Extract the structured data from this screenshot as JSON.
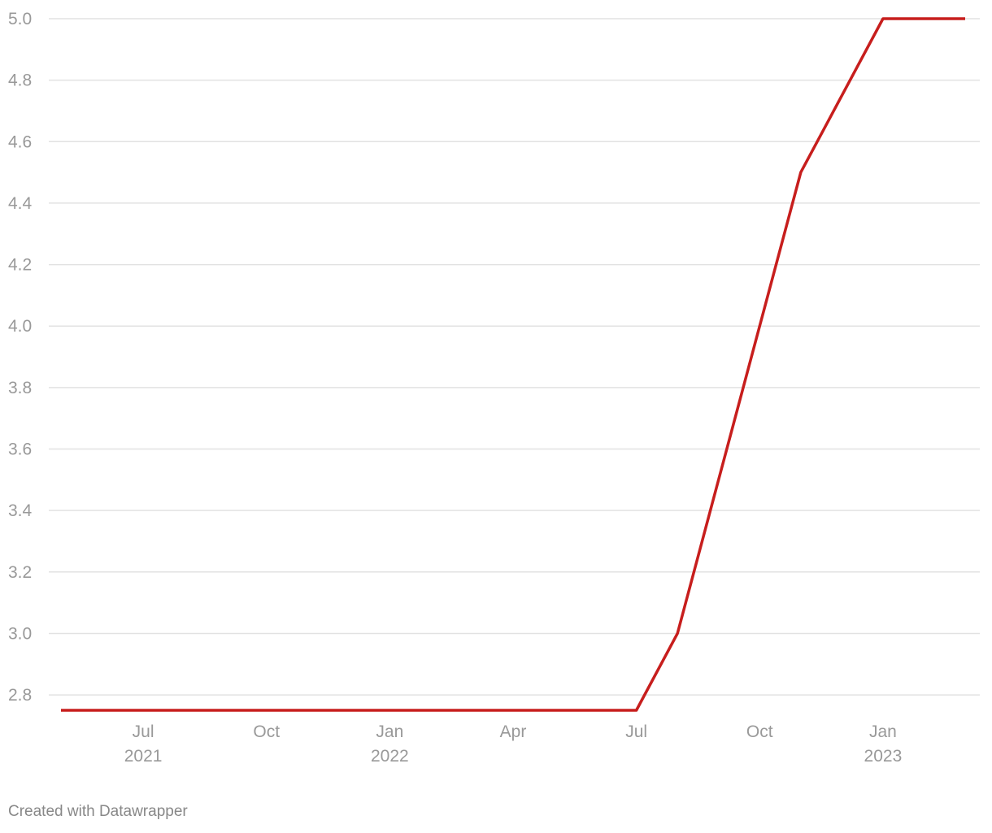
{
  "chart_data": {
    "type": "line",
    "x": [
      "2021-05",
      "2021-06",
      "2021-07",
      "2021-08",
      "2021-09",
      "2021-10",
      "2021-11",
      "2021-12",
      "2022-01",
      "2022-02",
      "2022-03",
      "2022-04",
      "2022-05",
      "2022-06",
      "2022-07",
      "2022-08",
      "2022-09",
      "2022-10",
      "2022-11",
      "2022-12",
      "2023-01",
      "2023-02",
      "2023-03"
    ],
    "series": [
      {
        "color": "#c71e1d",
        "values": [
          2.75,
          2.75,
          2.75,
          2.75,
          2.75,
          2.75,
          2.75,
          2.75,
          2.75,
          2.75,
          2.75,
          2.75,
          2.75,
          2.75,
          2.75,
          3.0,
          3.5,
          4.0,
          4.5,
          4.75,
          5.0,
          5.0,
          5.0
        ]
      }
    ],
    "xlim": [
      "2021-05",
      "2023-03"
    ],
    "xticks": [
      {
        "value": "2021-07",
        "label": [
          "Jul",
          "2021"
        ]
      },
      {
        "value": "2021-10",
        "label": [
          "Oct"
        ]
      },
      {
        "value": "2022-01",
        "label": [
          "Jan",
          "2022"
        ]
      },
      {
        "value": "2022-04",
        "label": [
          "Apr"
        ]
      },
      {
        "value": "2022-07",
        "label": [
          "Jul"
        ]
      },
      {
        "value": "2022-10",
        "label": [
          "Oct"
        ]
      },
      {
        "value": "2023-01",
        "label": [
          "Jan",
          "2023"
        ]
      }
    ],
    "ylim": [
      2.75,
      5.0
    ],
    "yticks": [
      2.8,
      {
        "value": 3.0,
        "label": "3.0"
      },
      3.2,
      3.4,
      3.6,
      3.8,
      {
        "value": 4.0,
        "label": "4.0"
      },
      4.2,
      4.4,
      4.6,
      4.8,
      {
        "value": 5.0,
        "label": "5.0"
      }
    ],
    "grid": true,
    "footer": "Created with Datawrapper"
  }
}
